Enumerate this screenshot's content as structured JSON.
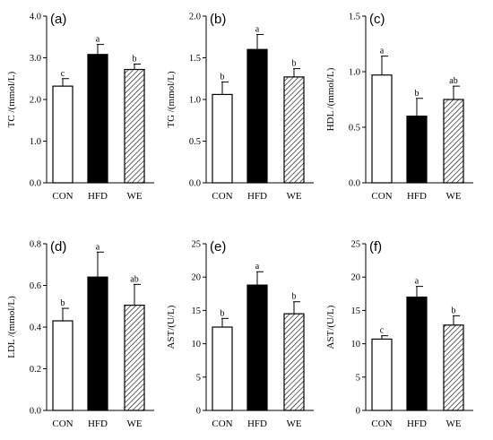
{
  "chart_data": [
    {
      "type": "bar",
      "panel_label": "(a)",
      "ylabel": "TC /(mmol/L)",
      "categories": [
        "CON",
        "HFD",
        "WE"
      ],
      "values": [
        2.32,
        3.08,
        2.72
      ],
      "errors": [
        0.18,
        0.24,
        0.13
      ],
      "significance": [
        "c",
        "a",
        "b"
      ],
      "ylim": [
        0,
        4.0
      ],
      "yticks": [
        "0.0",
        "1.0",
        "2.0",
        "3.0",
        "4.0"
      ],
      "bar_fills": [
        "white",
        "black",
        "hatched"
      ]
    },
    {
      "type": "bar",
      "panel_label": "(b)",
      "ylabel": "TG /(mmol/L)",
      "categories": [
        "CON",
        "HFD",
        "WE"
      ],
      "values": [
        1.06,
        1.6,
        1.27
      ],
      "errors": [
        0.15,
        0.18,
        0.1
      ],
      "significance": [
        "b",
        "a",
        "b"
      ],
      "ylim": [
        0,
        2.0
      ],
      "yticks": [
        "0.0",
        "0.5",
        "1.0",
        "1.5",
        "2.0"
      ],
      "bar_fills": [
        "white",
        "black",
        "hatched"
      ]
    },
    {
      "type": "bar",
      "panel_label": "(c)",
      "ylabel": "HDL /(mmol/L)",
      "categories": [
        "CON",
        "HFD",
        "WE"
      ],
      "values": [
        0.97,
        0.6,
        0.75
      ],
      "errors": [
        0.17,
        0.16,
        0.12
      ],
      "significance": [
        "a",
        "b",
        "ab"
      ],
      "ylim": [
        0,
        1.5
      ],
      "yticks": [
        "0.0",
        "0.5",
        "1.0",
        "1.5"
      ],
      "bar_fills": [
        "white",
        "black",
        "hatched"
      ]
    },
    {
      "type": "bar",
      "panel_label": "(d)",
      "ylabel": "LDL /(mmol/L)",
      "categories": [
        "CON",
        "HFD",
        "WE"
      ],
      "values": [
        0.43,
        0.64,
        0.505
      ],
      "errors": [
        0.06,
        0.12,
        0.1
      ],
      "significance": [
        "b",
        "a",
        "ab"
      ],
      "ylim": [
        0,
        0.8
      ],
      "yticks": [
        "0.0",
        "0.2",
        "0.4",
        "0.6",
        "0.8"
      ],
      "bar_fills": [
        "white",
        "black",
        "hatched"
      ]
    },
    {
      "type": "bar",
      "panel_label": "(e)",
      "ylabel": "AST/(U/L)",
      "categories": [
        "CON",
        "HFD",
        "WE"
      ],
      "values": [
        12.5,
        18.8,
        14.5
      ],
      "errors": [
        1.3,
        2.0,
        1.8
      ],
      "significance": [
        "b",
        "a",
        "b"
      ],
      "ylim": [
        0,
        25
      ],
      "yticks": [
        "0",
        "5",
        "10",
        "15",
        "20",
        "25"
      ],
      "bar_fills": [
        "white",
        "black",
        "hatched"
      ]
    },
    {
      "type": "bar",
      "panel_label": "(f)",
      "ylabel": "AST/(U/L)",
      "categories": [
        "CON",
        "HFD",
        "WE"
      ],
      "values": [
        10.7,
        17.0,
        12.8
      ],
      "errors": [
        0.5,
        1.6,
        1.4
      ],
      "significance": [
        "c",
        "a",
        "b"
      ],
      "ylim": [
        0,
        25
      ],
      "yticks": [
        "0",
        "5",
        "10",
        "15",
        "20",
        "25"
      ],
      "bar_fills": [
        "white",
        "black",
        "hatched"
      ]
    }
  ]
}
